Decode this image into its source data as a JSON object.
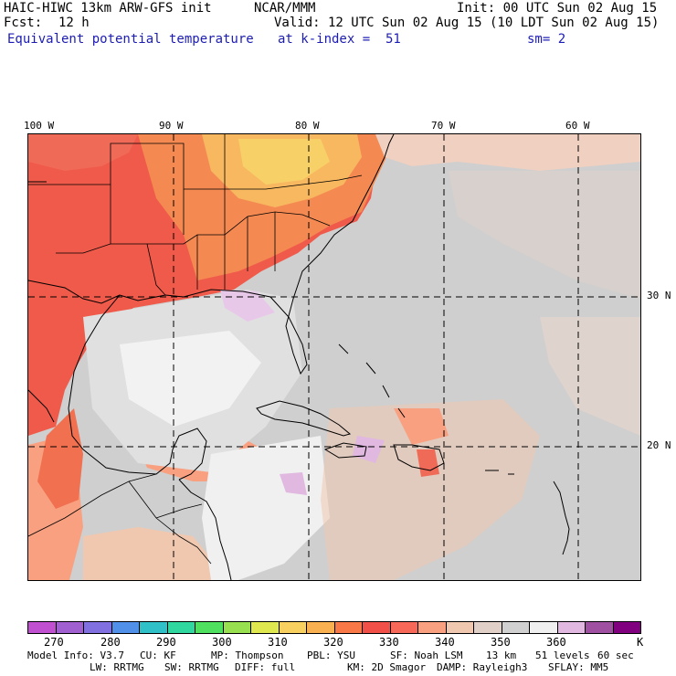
{
  "header": {
    "model_title": "HAIC-HIWC 13km ARW-GFS init",
    "institution": "NCAR/MMM",
    "init": "Init: 00 UTC Sun 02 Aug 15",
    "fcst_label": "Fcst:",
    "fcst_value": "12 h",
    "valid": "Valid: 12 UTC Sun 02 Aug 15 (10 LDT Sun 02 Aug 15)",
    "field_name": "Equivalent potential temperature",
    "level": "at k-index =  51",
    "smoothing": "sm= 2"
  },
  "map": {
    "lon_labels": [
      "100 W",
      "90 W",
      "80 W",
      "70 W",
      "60 W"
    ],
    "lat_labels": [
      "30 N",
      "20 N"
    ]
  },
  "colorbar": {
    "colors": [
      "#c050d0",
      "#a060d0",
      "#8070e0",
      "#5090e8",
      "#30c0c8",
      "#30d8a0",
      "#50e060",
      "#98e050",
      "#e0e850",
      "#f8d060",
      "#f8b050",
      "#f87848",
      "#f05048",
      "#f86858",
      "#f8a080",
      "#f0c8b0",
      "#e0d0c8",
      "#d0d0d0",
      "#f0f0f0",
      "#e0b8e0",
      "#a050a0",
      "#800080"
    ],
    "labels": [
      "270",
      "280",
      "290",
      "300",
      "310",
      "320",
      "330",
      "340",
      "350",
      "360",
      "K"
    ]
  },
  "footer": {
    "line1": [
      "Model Info: V3.7",
      "CU: KF",
      "MP: Thompson",
      "PBL: YSU",
      "SF: Noah LSM",
      "13 km",
      "51 levels",
      "60 sec"
    ],
    "line2": [
      "LW: RRTMG",
      "SW: RRTMG",
      "DIFF: full",
      "KM: 2D Smagor",
      "DAMP: Rayleigh3",
      "SFLAY: MM5"
    ]
  }
}
